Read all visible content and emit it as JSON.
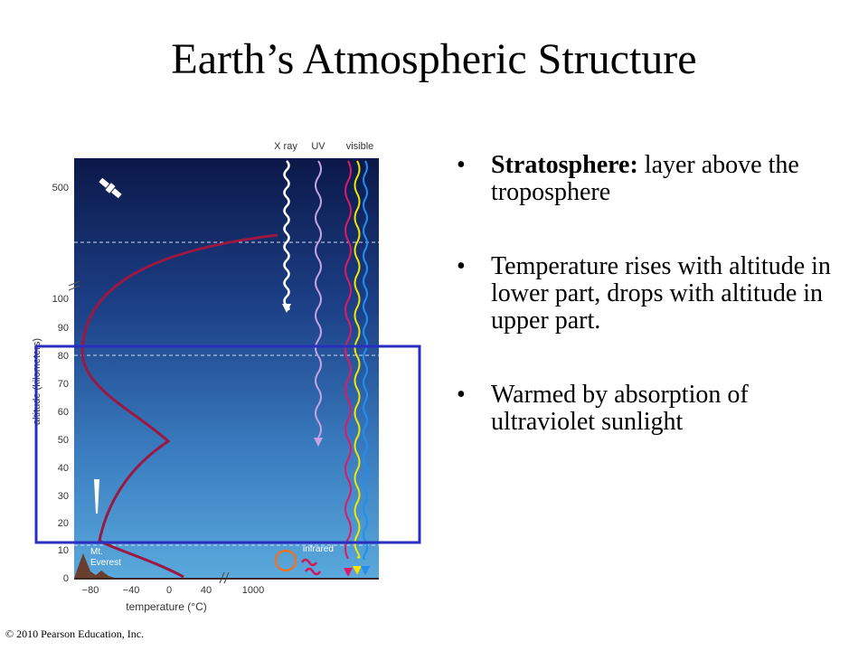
{
  "title": "Earth’s Atmospheric Structure",
  "bullets": [
    {
      "bold": "Stratosphere:",
      "text": " layer above the troposphere"
    },
    {
      "bold": "",
      "text": "Temperature rises with altitude in lower part, drops with altitude in upper part."
    },
    {
      "bold": "",
      "text": "Warmed by absorption of ultraviolet sunlight"
    }
  ],
  "bullet_glyph": "•",
  "diagram": {
    "radiation_labels": [
      "X ray",
      "UV",
      "visible"
    ],
    "y_ticks": [
      "500",
      "100",
      "90",
      "80",
      "70",
      "60",
      "50",
      "40",
      "30",
      "20",
      "10",
      "0"
    ],
    "x_ticks": [
      "−80",
      "−40",
      "0",
      "40",
      "1000"
    ],
    "x_axis_label": "temperature (°C)",
    "y_axis_label": "altitude (kilometers)",
    "everest_label_1": "Mt.",
    "everest_label_2": "Everest",
    "infrared_label": "infrared",
    "colors": {
      "sky_top": "#0b1848",
      "sky_bottom": "#4f9fd6",
      "temperature_curve": "#9b1842",
      "highlight_box": "#2a2ec0"
    }
  },
  "copyright": "© 2010 Pearson Education, Inc."
}
